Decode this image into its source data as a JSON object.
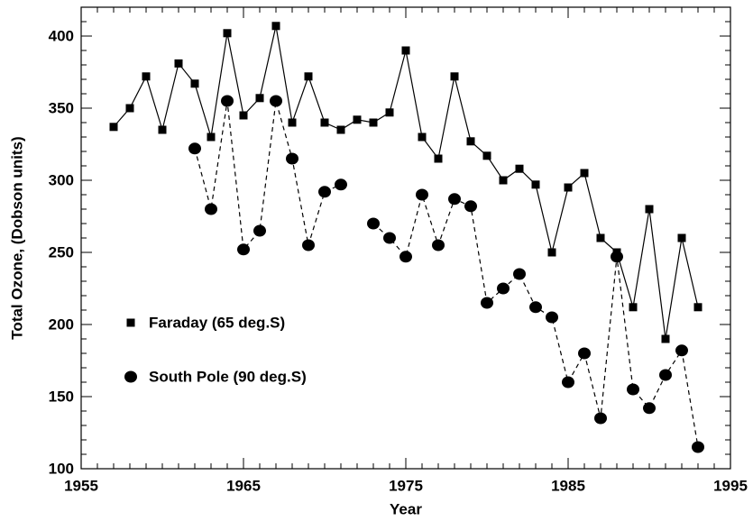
{
  "chart_data": {
    "type": "line",
    "xlabel": "Year",
    "ylabel": "Total  Ozone, (Dobson units)",
    "x": [
      1957,
      1958,
      1959,
      1960,
      1961,
      1962,
      1963,
      1964,
      1965,
      1966,
      1967,
      1968,
      1969,
      1970,
      1971,
      1972,
      1973,
      1974,
      1975,
      1976,
      1977,
      1978,
      1979,
      1980,
      1981,
      1982,
      1983,
      1984,
      1985,
      1986,
      1987,
      1988,
      1989,
      1990,
      1991,
      1992,
      1993
    ],
    "series": [
      {
        "name": "Faraday (65 deg.S)",
        "color": "#000000",
        "marker": "square",
        "dashed": false,
        "values": [
          337,
          350,
          372,
          335,
          381,
          367,
          330,
          402,
          345,
          357,
          407,
          340,
          372,
          340,
          335,
          342,
          340,
          347,
          390,
          330,
          315,
          372,
          327,
          317,
          300,
          308,
          297,
          250,
          295,
          305,
          260,
          250,
          212,
          280,
          190,
          260,
          212
        ]
      },
      {
        "name": "South Pole (90 deg.S)",
        "color": "#000000",
        "marker": "circle",
        "dashed": true,
        "values": [
          null,
          null,
          null,
          null,
          null,
          322,
          280,
          355,
          252,
          265,
          355,
          315,
          255,
          292,
          297,
          null,
          270,
          260,
          247,
          290,
          255,
          287,
          282,
          215,
          225,
          235,
          212,
          205,
          160,
          180,
          135,
          247,
          155,
          142,
          165,
          182,
          115
        ]
      }
    ],
    "xlim": [
      1955,
      1995
    ],
    "xticks": [
      1955,
      1965,
      1975,
      1985,
      1995
    ],
    "xminor": 1,
    "ylim": [
      100,
      420
    ],
    "yticks": [
      100,
      150,
      200,
      250,
      300,
      350,
      400
    ],
    "yminor": 10,
    "grid": false,
    "legend": "lower left"
  }
}
